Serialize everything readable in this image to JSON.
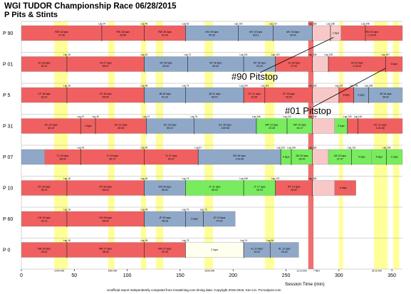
{
  "chart_data": {
    "type": "gantt",
    "title": "WGI TUDOR Championship Race 06/28/2015",
    "subtitle": "P Pits & Stints",
    "xlabel": "Session Time (min)",
    "xlim": [
      0,
      360
    ],
    "xticks": [
      0,
      50,
      100,
      150,
      200,
      250,
      300,
      350
    ],
    "footer": "Unofficial report independently computed from imsatiming.com timing data. Copyright 2015-2016, Ken Lin. P1Analysis.com",
    "yellow_periods": [
      [
        31,
        44
      ],
      [
        82,
        88
      ],
      [
        113,
        118
      ],
      [
        127,
        134
      ],
      [
        173,
        181
      ],
      [
        230,
        239
      ],
      [
        300,
        304
      ],
      [
        333,
        346
      ],
      [
        351,
        357
      ]
    ],
    "red_period": [
      271,
      276
    ],
    "yellow_labels": [
      {
        "x": 31,
        "text": "14:00:000"
      },
      {
        "x": 82,
        "text": "8:50:000"
      },
      {
        "x": 173,
        "text": "16:00:000"
      },
      {
        "x": 260,
        "text": "12:12:000"
      },
      {
        "x": 276,
        "text": "7:58:2"
      },
      {
        "x": 331,
        "text": "25:11:000"
      }
    ],
    "series": [
      {
        "name": "P 90",
        "pits": [
          {
            "x": 76,
            "lap": "Lap 24"
          },
          {
            "x": 116,
            "lap": "Lap 45"
          },
          {
            "x": 155,
            "lap": "Lap 52"
          },
          {
            "x": 205,
            "lap": "Lap 102"
          },
          {
            "x": 238,
            "lap": "Lap 117"
          },
          {
            "x": 275,
            "lap": "Lap 136"
          },
          {
            "x": 292,
            "lap": "Lap 138"
          },
          {
            "x": 325,
            "lap": "Lap 146"
          }
        ],
        "stints": [
          {
            "start": 0,
            "end": 76,
            "text": "RW 24 laps",
            "sub": "27:06",
            "color": "red"
          },
          {
            "start": 76,
            "end": 116,
            "text": "RW 18 laps",
            "sub": "26:56",
            "color": "red"
          },
          {
            "start": 116,
            "end": 155,
            "text": "RW 28 laps",
            "sub": "51:04",
            "color": "red"
          },
          {
            "start": 155,
            "end": 205,
            "text": "MV 29 laps",
            "sub": "50:39",
            "color": "blue"
          },
          {
            "start": 205,
            "end": 238,
            "text": "MV 15 laps",
            "sub": "28:11",
            "color": "blue"
          },
          {
            "start": 238,
            "end": 275,
            "text": "MV 18 laps",
            "sub": "43:44",
            "color": "blue"
          },
          {
            "start": 275,
            "end": 292,
            "text": "",
            "sub": "",
            "color": "pink"
          },
          {
            "start": 292,
            "end": 302,
            "text": "1 laps",
            "sub": "",
            "color": "pink"
          },
          {
            "start": 302,
            "end": 360,
            "text": "RW 24 laps",
            "sub": "1:10:04",
            "color": "red"
          }
        ]
      },
      {
        "name": "P 01",
        "pits": [
          {
            "x": 43,
            "lap": "Lap 18"
          },
          {
            "x": 116,
            "lap": "Lap 43"
          },
          {
            "x": 157,
            "lap": "Lap 72"
          },
          {
            "x": 210,
            "lap": "Lap 101"
          },
          {
            "x": 240,
            "lap": "Lap 120"
          },
          {
            "x": 275,
            "lap": "Lap 136"
          },
          {
            "x": 290,
            "lap": "Lap 138"
          },
          {
            "x": 344,
            "lap": "Lap 157"
          }
        ],
        "stints": [
          {
            "start": 0,
            "end": 43,
            "text": "JH 18 laps",
            "sub": "32:12",
            "color": "red"
          },
          {
            "start": 43,
            "end": 116,
            "text": "JH 27 laps",
            "sub": "55:57",
            "color": "red"
          },
          {
            "start": 116,
            "end": 157,
            "text": "SP 28 laps",
            "sub": "50:00",
            "color": "blue"
          },
          {
            "start": 157,
            "end": 210,
            "text": "SP 28 laps",
            "sub": "50:42",
            "color": "blue"
          },
          {
            "start": 210,
            "end": 240,
            "text": "SP 18 laps",
            "sub": "32:04",
            "color": "blue"
          },
          {
            "start": 240,
            "end": 275,
            "text": "JH 18 laps",
            "sub": "37:02",
            "color": "red"
          },
          {
            "start": 275,
            "end": 290,
            "text": "",
            "sub": "",
            "color": "pink"
          },
          {
            "start": 290,
            "end": 344,
            "text": "JH 23 laps",
            "sub": "1:10:04",
            "color": "red"
          },
          {
            "start": 344,
            "end": 360,
            "text": "3 laps",
            "sub": "",
            "color": "red"
          }
        ]
      },
      {
        "name": "P 5",
        "pits": [
          {
            "x": 43,
            "lap": "Lap 18"
          },
          {
            "x": 116,
            "lap": "Lap 46"
          },
          {
            "x": 155,
            "lap": "Lap 73"
          },
          {
            "x": 210,
            "lap": "Lap 104"
          },
          {
            "x": 230,
            "lap": "Lap 116"
          },
          {
            "x": 275,
            "lap": "Lap 136"
          },
          {
            "x": 300,
            "lap": "Lap 137"
          },
          {
            "x": 314,
            "lap": "Lap 145"
          },
          {
            "x": 328,
            "lap": "Lap 148"
          }
        ],
        "stints": [
          {
            "start": 0,
            "end": 43,
            "text": "CF 18 laps",
            "sub": "32:24",
            "color": "red"
          },
          {
            "start": 43,
            "end": 116,
            "text": "CF 28 laps",
            "sub": "58:45",
            "color": "red"
          },
          {
            "start": 116,
            "end": 155,
            "text": "JB 28 laps",
            "sub": "51:03",
            "color": "blue"
          },
          {
            "start": 155,
            "end": 210,
            "text": "JB 31 laps",
            "sub": "56:07",
            "color": "blue"
          },
          {
            "start": 210,
            "end": 230,
            "text": "CF 12 laps",
            "sub": "22:36",
            "color": "red"
          },
          {
            "start": 230,
            "end": 275,
            "text": "CF 18 laps",
            "sub": "43:34",
            "color": "red"
          },
          {
            "start": 275,
            "end": 300,
            "text": "",
            "sub": "",
            "color": "pink"
          },
          {
            "start": 300,
            "end": 314,
            "text": "8 laps",
            "sub": "",
            "color": "red"
          },
          {
            "start": 314,
            "end": 328,
            "text": "3 laps",
            "sub": "",
            "color": "blue"
          },
          {
            "start": 328,
            "end": 360,
            "text": "JB 18 laps",
            "sub": "46:02",
            "color": "blue"
          }
        ]
      },
      {
        "name": "P 31",
        "pits": [
          {
            "x": 56,
            "lap": "Lap 22"
          },
          {
            "x": 70,
            "lap": "Lap 26"
          },
          {
            "x": 118,
            "lap": "Lap 47"
          },
          {
            "x": 163,
            "lap": "Lap 76"
          },
          {
            "x": 222,
            "lap": "Lap 106"
          },
          {
            "x": 251,
            "lap": "Lap 120"
          },
          {
            "x": 275,
            "lap": "Lap 135"
          },
          {
            "x": 308,
            "lap": "Lap 139"
          },
          {
            "x": 318,
            "lap": "Lap 140"
          }
        ],
        "stints": [
          {
            "start": 0,
            "end": 56,
            "text": "DC 22 laps",
            "sub": "46:10",
            "color": "red"
          },
          {
            "start": 56,
            "end": 70,
            "text": "4 laps",
            "sub": "",
            "color": "red"
          },
          {
            "start": 70,
            "end": 118,
            "text": "DC 21 laps",
            "sub": "40:36",
            "color": "red"
          },
          {
            "start": 118,
            "end": 163,
            "text": "EC 29 laps",
            "sub": "50:21",
            "color": "blue"
          },
          {
            "start": 163,
            "end": 222,
            "text": "EC 30 laps",
            "sub": "1:00:06",
            "color": "blue"
          },
          {
            "start": 222,
            "end": 251,
            "text": "MP 13 laps",
            "sub": "20:28",
            "color": "green"
          },
          {
            "start": 251,
            "end": 275,
            "text": "MP 14 laps",
            "sub": "34:17",
            "color": "green"
          },
          {
            "start": 275,
            "end": 296,
            "text": "",
            "sub": "",
            "color": "pink"
          },
          {
            "start": 296,
            "end": 308,
            "text": "4 laps",
            "sub": "",
            "color": "green"
          },
          {
            "start": 308,
            "end": 318,
            "text": "",
            "sub": "",
            "color": "red"
          },
          {
            "start": 318,
            "end": 360,
            "text": "DC 21 laps",
            "sub": "1:01:08",
            "color": "red"
          }
        ]
      },
      {
        "name": "P 07",
        "pits": [
          {
            "x": 56,
            "lap": "Lap 26"
          },
          {
            "x": 116,
            "lap": "Lap 40"
          },
          {
            "x": 167,
            "lap": "Lap 67"
          },
          {
            "x": 245,
            "lap": "Lap 103"
          },
          {
            "x": 255,
            "lap": "Lap 108"
          },
          {
            "x": 275,
            "lap": "Lap 118"
          },
          {
            "x": 312,
            "lap": "Lap 131"
          },
          {
            "x": 345,
            "lap": "Lap 136"
          }
        ],
        "stints": [
          {
            "start": 0,
            "end": 22,
            "text": "",
            "sub": "",
            "color": "blue"
          },
          {
            "start": 22,
            "end": 56,
            "text": "TL 26 laps",
            "sub": "58:34",
            "color": "red"
          },
          {
            "start": 56,
            "end": 116,
            "text": "TL 16 laps",
            "sub": "30:17",
            "color": "red"
          },
          {
            "start": 116,
            "end": 167,
            "text": "TL 27 laps",
            "sub": "50:47",
            "color": "red"
          },
          {
            "start": 167,
            "end": 245,
            "text": "BD 36 laps",
            "sub": "1:09:08",
            "color": "blue"
          },
          {
            "start": 245,
            "end": 255,
            "text": "4 laps",
            "sub": "",
            "color": "green"
          },
          {
            "start": 255,
            "end": 275,
            "text": "JM 18 laps",
            "sub": "28:49",
            "color": "green"
          },
          {
            "start": 275,
            "end": 290,
            "text": "",
            "sub": "",
            "color": "pink"
          },
          {
            "start": 290,
            "end": 312,
            "text": "JM 13 laps",
            "sub": "37:47",
            "color": "green"
          },
          {
            "start": 312,
            "end": 331,
            "text": "4 laps",
            "sub": "",
            "color": "green"
          },
          {
            "start": 331,
            "end": 345,
            "text": "4 laps",
            "sub": "",
            "color": "green"
          },
          {
            "start": 345,
            "end": 360,
            "text": "0 laps",
            "sub": "",
            "color": "green"
          }
        ]
      },
      {
        "name": "P 10",
        "pits": [
          {
            "x": 43,
            "lap": "Lap 18"
          },
          {
            "x": 116,
            "lap": "Lap 46"
          },
          {
            "x": 155,
            "lap": "Lap 74"
          },
          {
            "x": 210,
            "lap": "Lap 108"
          },
          {
            "x": 240,
            "lap": "Lap 122"
          },
          {
            "x": 275,
            "lap": "Lap 136"
          }
        ],
        "stints": [
          {
            "start": 0,
            "end": 43,
            "text": "RT 18 laps",
            "sub": "33:14",
            "color": "red"
          },
          {
            "start": 43,
            "end": 116,
            "text": "RT 28 laps",
            "sub": "58:44",
            "color": "red"
          },
          {
            "start": 116,
            "end": 155,
            "text": "MA 28 laps",
            "sub": "50:03",
            "color": "blue"
          },
          {
            "start": 155,
            "end": 210,
            "text": "JT 31 laps",
            "sub": "56:03",
            "color": "green"
          },
          {
            "start": 210,
            "end": 240,
            "text": "JT 17 laps",
            "sub": "30:23",
            "color": "green"
          },
          {
            "start": 240,
            "end": 275,
            "text": "RT 14 laps",
            "sub": "30:52",
            "color": "red"
          },
          {
            "start": 275,
            "end": 296,
            "text": "",
            "sub": "",
            "color": "pink"
          },
          {
            "start": 296,
            "end": 312,
            "text": "0 laps",
            "sub": "",
            "color": "red"
          },
          {
            "start": 312,
            "end": 316,
            "text": "",
            "sub": "",
            "color": "red"
          }
        ]
      },
      {
        "name": "P 60",
        "pits": [
          {
            "x": 43,
            "lap": "Lap 19"
          },
          {
            "x": 116,
            "lap": "Lap 45"
          },
          {
            "x": 155,
            "lap": "Lap 70"
          },
          {
            "x": 172,
            "lap": "Lap 73"
          }
        ],
        "stints": [
          {
            "start": 0,
            "end": 43,
            "text": "CN 19 laps",
            "sub": "32:13",
            "color": "red"
          },
          {
            "start": 43,
            "end": 116,
            "text": "CN 28 laps",
            "sub": "58:44",
            "color": "red"
          },
          {
            "start": 116,
            "end": 155,
            "text": "JP 25 laps",
            "sub": "48:16",
            "color": "blue"
          },
          {
            "start": 155,
            "end": 172,
            "text": "3 laps",
            "sub": "",
            "color": "blue"
          },
          {
            "start": 172,
            "end": 202,
            "text": "JP 19 laps",
            "sub": "27:09",
            "color": "blue"
          }
        ]
      },
      {
        "name": "P 0",
        "pits": [
          {
            "x": 43,
            "lap": "Lap 18"
          },
          {
            "x": 116,
            "lap": "Lap 45"
          },
          {
            "x": 155,
            "lap": "Lap 72"
          },
          {
            "x": 210,
            "lap": "Lap 74"
          },
          {
            "x": 235,
            "lap": "Lap 84"
          }
        ],
        "stints": [
          {
            "start": 0,
            "end": 43,
            "text": "MR 18 laps",
            "sub": "33:24",
            "color": "red"
          },
          {
            "start": 43,
            "end": 116,
            "text": "MR 27 laps",
            "sub": "58:45",
            "color": "red"
          },
          {
            "start": 116,
            "end": 155,
            "text": "MR 27 laps",
            "sub": "51:25",
            "color": "red"
          },
          {
            "start": 155,
            "end": 210,
            "text": "2 laps",
            "sub": "",
            "color": "white"
          },
          {
            "start": 210,
            "end": 235,
            "text": "KL 10 laps",
            "sub": "19:02",
            "color": "blue"
          },
          {
            "start": 235,
            "end": 262,
            "text": "KL 12 laps",
            "sub": "20:32",
            "color": "blue"
          }
        ]
      }
    ],
    "colors": {
      "red": "#f06060",
      "blue": "#90a8c8",
      "green": "#78ec5e",
      "pink": "#f8c8c8",
      "white": "#fffff0",
      "yellow": "#ffff9a",
      "redband": "#ee7070"
    },
    "annotations": [
      {
        "text": "#90 Pitstop",
        "row": "P 90",
        "x": 295
      },
      {
        "text": "#01 Pitstop",
        "row": "P 01",
        "x": 344
      }
    ]
  }
}
